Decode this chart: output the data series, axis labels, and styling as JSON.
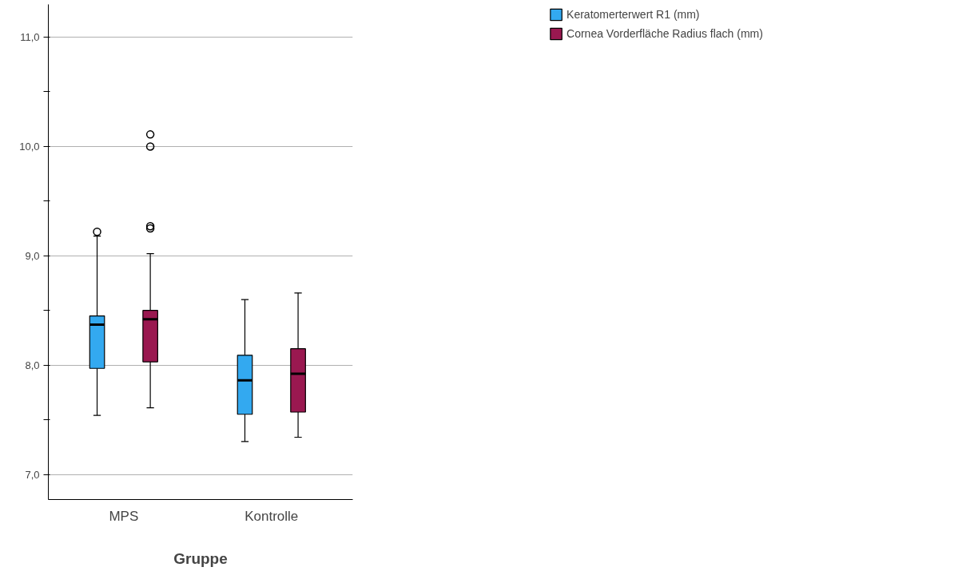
{
  "chart_data": {
    "type": "box",
    "xlabel": "Gruppe",
    "categories": [
      "MPS",
      "Kontrolle"
    ],
    "series": [
      {
        "name": "Keratomerterwert R1 (mm)",
        "color": "#33a9f0",
        "boxes": [
          {
            "low": 7.54,
            "q1": 7.97,
            "median": 8.37,
            "q3": 8.45,
            "high": 9.18,
            "outliers": [
              9.22
            ]
          },
          {
            "low": 7.3,
            "q1": 7.55,
            "median": 7.86,
            "q3": 8.09,
            "high": 8.6
          }
        ]
      },
      {
        "name": "Cornea Vorderfläche Radius flach (mm)",
        "color": "#9a1850",
        "boxes": [
          {
            "low": 7.61,
            "q1": 8.03,
            "median": 8.42,
            "q3": 8.5,
            "high": 9.02,
            "outliers": [
              9.25,
              9.27,
              10.0,
              10.11
            ]
          },
          {
            "low": 7.34,
            "q1": 7.57,
            "median": 7.92,
            "q3": 8.15,
            "high": 8.66
          }
        ]
      }
    ],
    "ylim": [
      6.77,
      11.3
    ],
    "yticks": [
      {
        "value": 7.0,
        "label": "7,0"
      },
      {
        "value": 7.5,
        "label": null
      },
      {
        "value": 8.0,
        "label": "8,0"
      },
      {
        "value": 8.5,
        "label": null
      },
      {
        "value": 9.0,
        "label": "9,0"
      },
      {
        "value": 9.5,
        "label": null
      },
      {
        "value": 10.0,
        "label": "10,0"
      },
      {
        "value": 10.5,
        "label": null
      },
      {
        "value": 11.0,
        "label": "11,0"
      }
    ],
    "grid": "y",
    "legend": "top right"
  }
}
